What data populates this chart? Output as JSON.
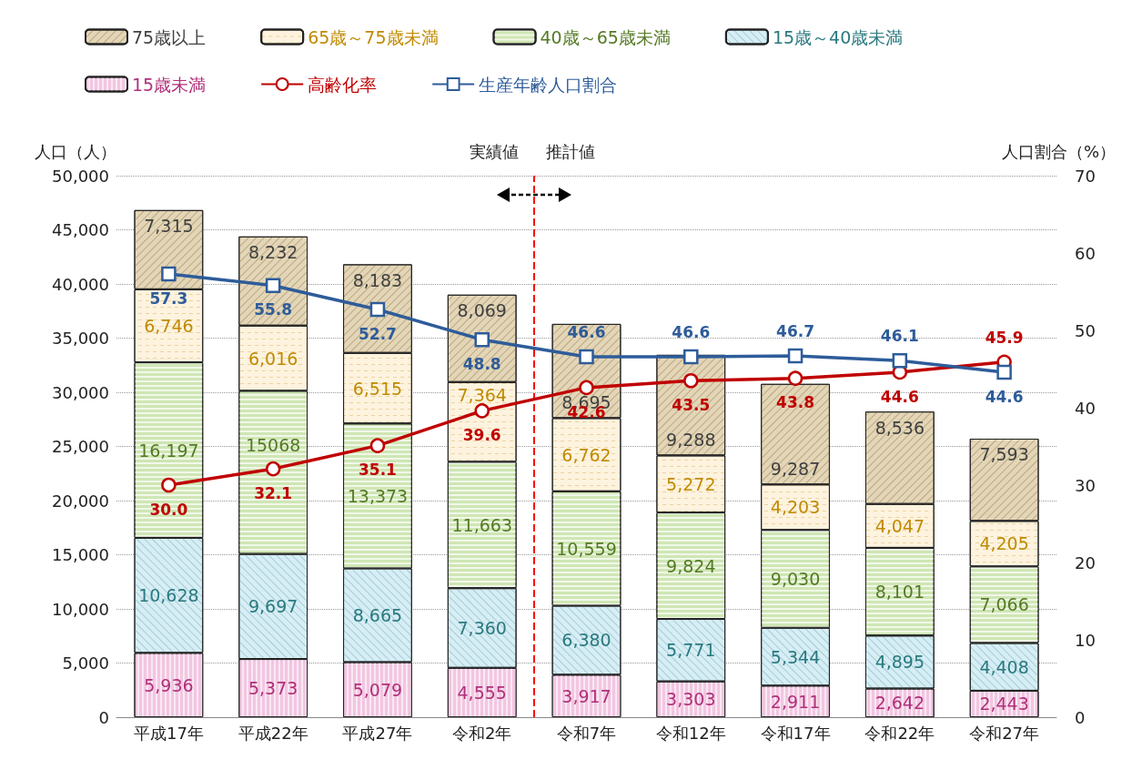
{
  "chart_data": {
    "type": "bar",
    "stacked": true,
    "ylabel": "人口（人）",
    "y2label": "人口割合（%）",
    "categories": [
      "平成17年",
      "平成22年",
      "平成27年",
      "令和2年",
      "令和7年",
      "令和12年",
      "令和17年",
      "令和22年",
      "令和27年"
    ],
    "series": [
      {
        "name": "15歳未満",
        "color": "#f2c6e1",
        "values": [
          5936,
          5373,
          5079,
          4555,
          3917,
          3303,
          2911,
          2642,
          2443
        ],
        "value_labels": [
          "5,936",
          "5,373",
          "5,079",
          "4,555",
          "3,917",
          "3,303",
          "2,911",
          "2,642",
          "2,443"
        ]
      },
      {
        "name": "15歳～40歳未満",
        "color": "#d6eef4",
        "values": [
          10628,
          9697,
          8665,
          7360,
          6380,
          5771,
          5344,
          4895,
          4408
        ],
        "value_labels": [
          "10,628",
          "9,697",
          "8,665",
          "7,360",
          "6,380",
          "5,771",
          "5,344",
          "4,895",
          "4,408"
        ]
      },
      {
        "name": "40歳～65歳未満",
        "color": "#cfe6b4",
        "values": [
          16197,
          15068,
          13373,
          11663,
          10559,
          9824,
          9030,
          8101,
          7066
        ],
        "value_labels": [
          "16,197",
          "15068",
          "13,373",
          "11,663",
          "10,559",
          "9,824",
          "9,030",
          "8,101",
          "7,066"
        ]
      },
      {
        "name": "65歳～75歳未満",
        "color": "#fdf3de",
        "values": [
          6746,
          6016,
          6515,
          7364,
          6762,
          5272,
          4203,
          4047,
          4205
        ],
        "value_labels": [
          "6,746",
          "6,016",
          "6,515",
          "7,364",
          "6,762",
          "5,272",
          "4,203",
          "4,047",
          "4,205"
        ]
      },
      {
        "name": "75歳以上",
        "color": "#e3d6b8",
        "values": [
          7315,
          8232,
          8183,
          8069,
          8695,
          9288,
          9287,
          8536,
          7593
        ],
        "value_labels": [
          "7,315",
          "8,232",
          "8,183",
          "8,069",
          "8,695",
          "9,288",
          "9,287",
          "8,536",
          "7,593"
        ]
      },
      {
        "name": "高齢化率",
        "type": "line",
        "axis": "y2",
        "color": "#c00000",
        "marker": "circle",
        "values": [
          30.0,
          32.1,
          35.1,
          39.6,
          42.6,
          43.5,
          43.8,
          44.6,
          45.9
        ],
        "value_labels": [
          "30.0",
          "32.1",
          "35.1",
          "39.6",
          "42.6",
          "43.5",
          "43.8",
          "44.6",
          "45.9"
        ]
      },
      {
        "name": "生産年齢人口割合",
        "type": "line",
        "axis": "y2",
        "color": "#2e5c9a",
        "marker": "square",
        "values": [
          57.3,
          55.8,
          52.7,
          48.8,
          46.6,
          46.6,
          46.7,
          46.1,
          44.6
        ],
        "value_labels": [
          "57.3",
          "55.8",
          "52.7",
          "48.8",
          "46.6",
          "46.6",
          "46.7",
          "46.1",
          "44.6"
        ]
      }
    ],
    "ylim": [
      0,
      50000
    ],
    "yticks": [
      0,
      {
        "value": 5000,
        "label": "5,000"
      },
      {
        "value": 10000,
        "label": "10,000"
      },
      {
        "value": 15000,
        "label": "15,000"
      },
      {
        "value": 20000,
        "label": "20,000"
      },
      {
        "value": 25000,
        "label": "25,000"
      },
      {
        "value": 30000,
        "label": "30,000"
      },
      {
        "value": 35000,
        "label": "35,000"
      },
      {
        "value": 40000,
        "label": "40,000"
      },
      {
        "value": 45000,
        "label": "45,000"
      },
      {
        "value": 50000,
        "label": "50,000"
      }
    ],
    "y2lim": [
      0,
      70
    ],
    "y2ticks": [
      0,
      10,
      20,
      30,
      40,
      50,
      60,
      70
    ],
    "ref_lines": [
      {
        "axis": "x",
        "value": "令和2年",
        "color": "#ff0000",
        "line_style": "dashed"
      }
    ],
    "annotations": [
      "実績値",
      "推計値"
    ],
    "grid": "y",
    "legend": "top"
  }
}
